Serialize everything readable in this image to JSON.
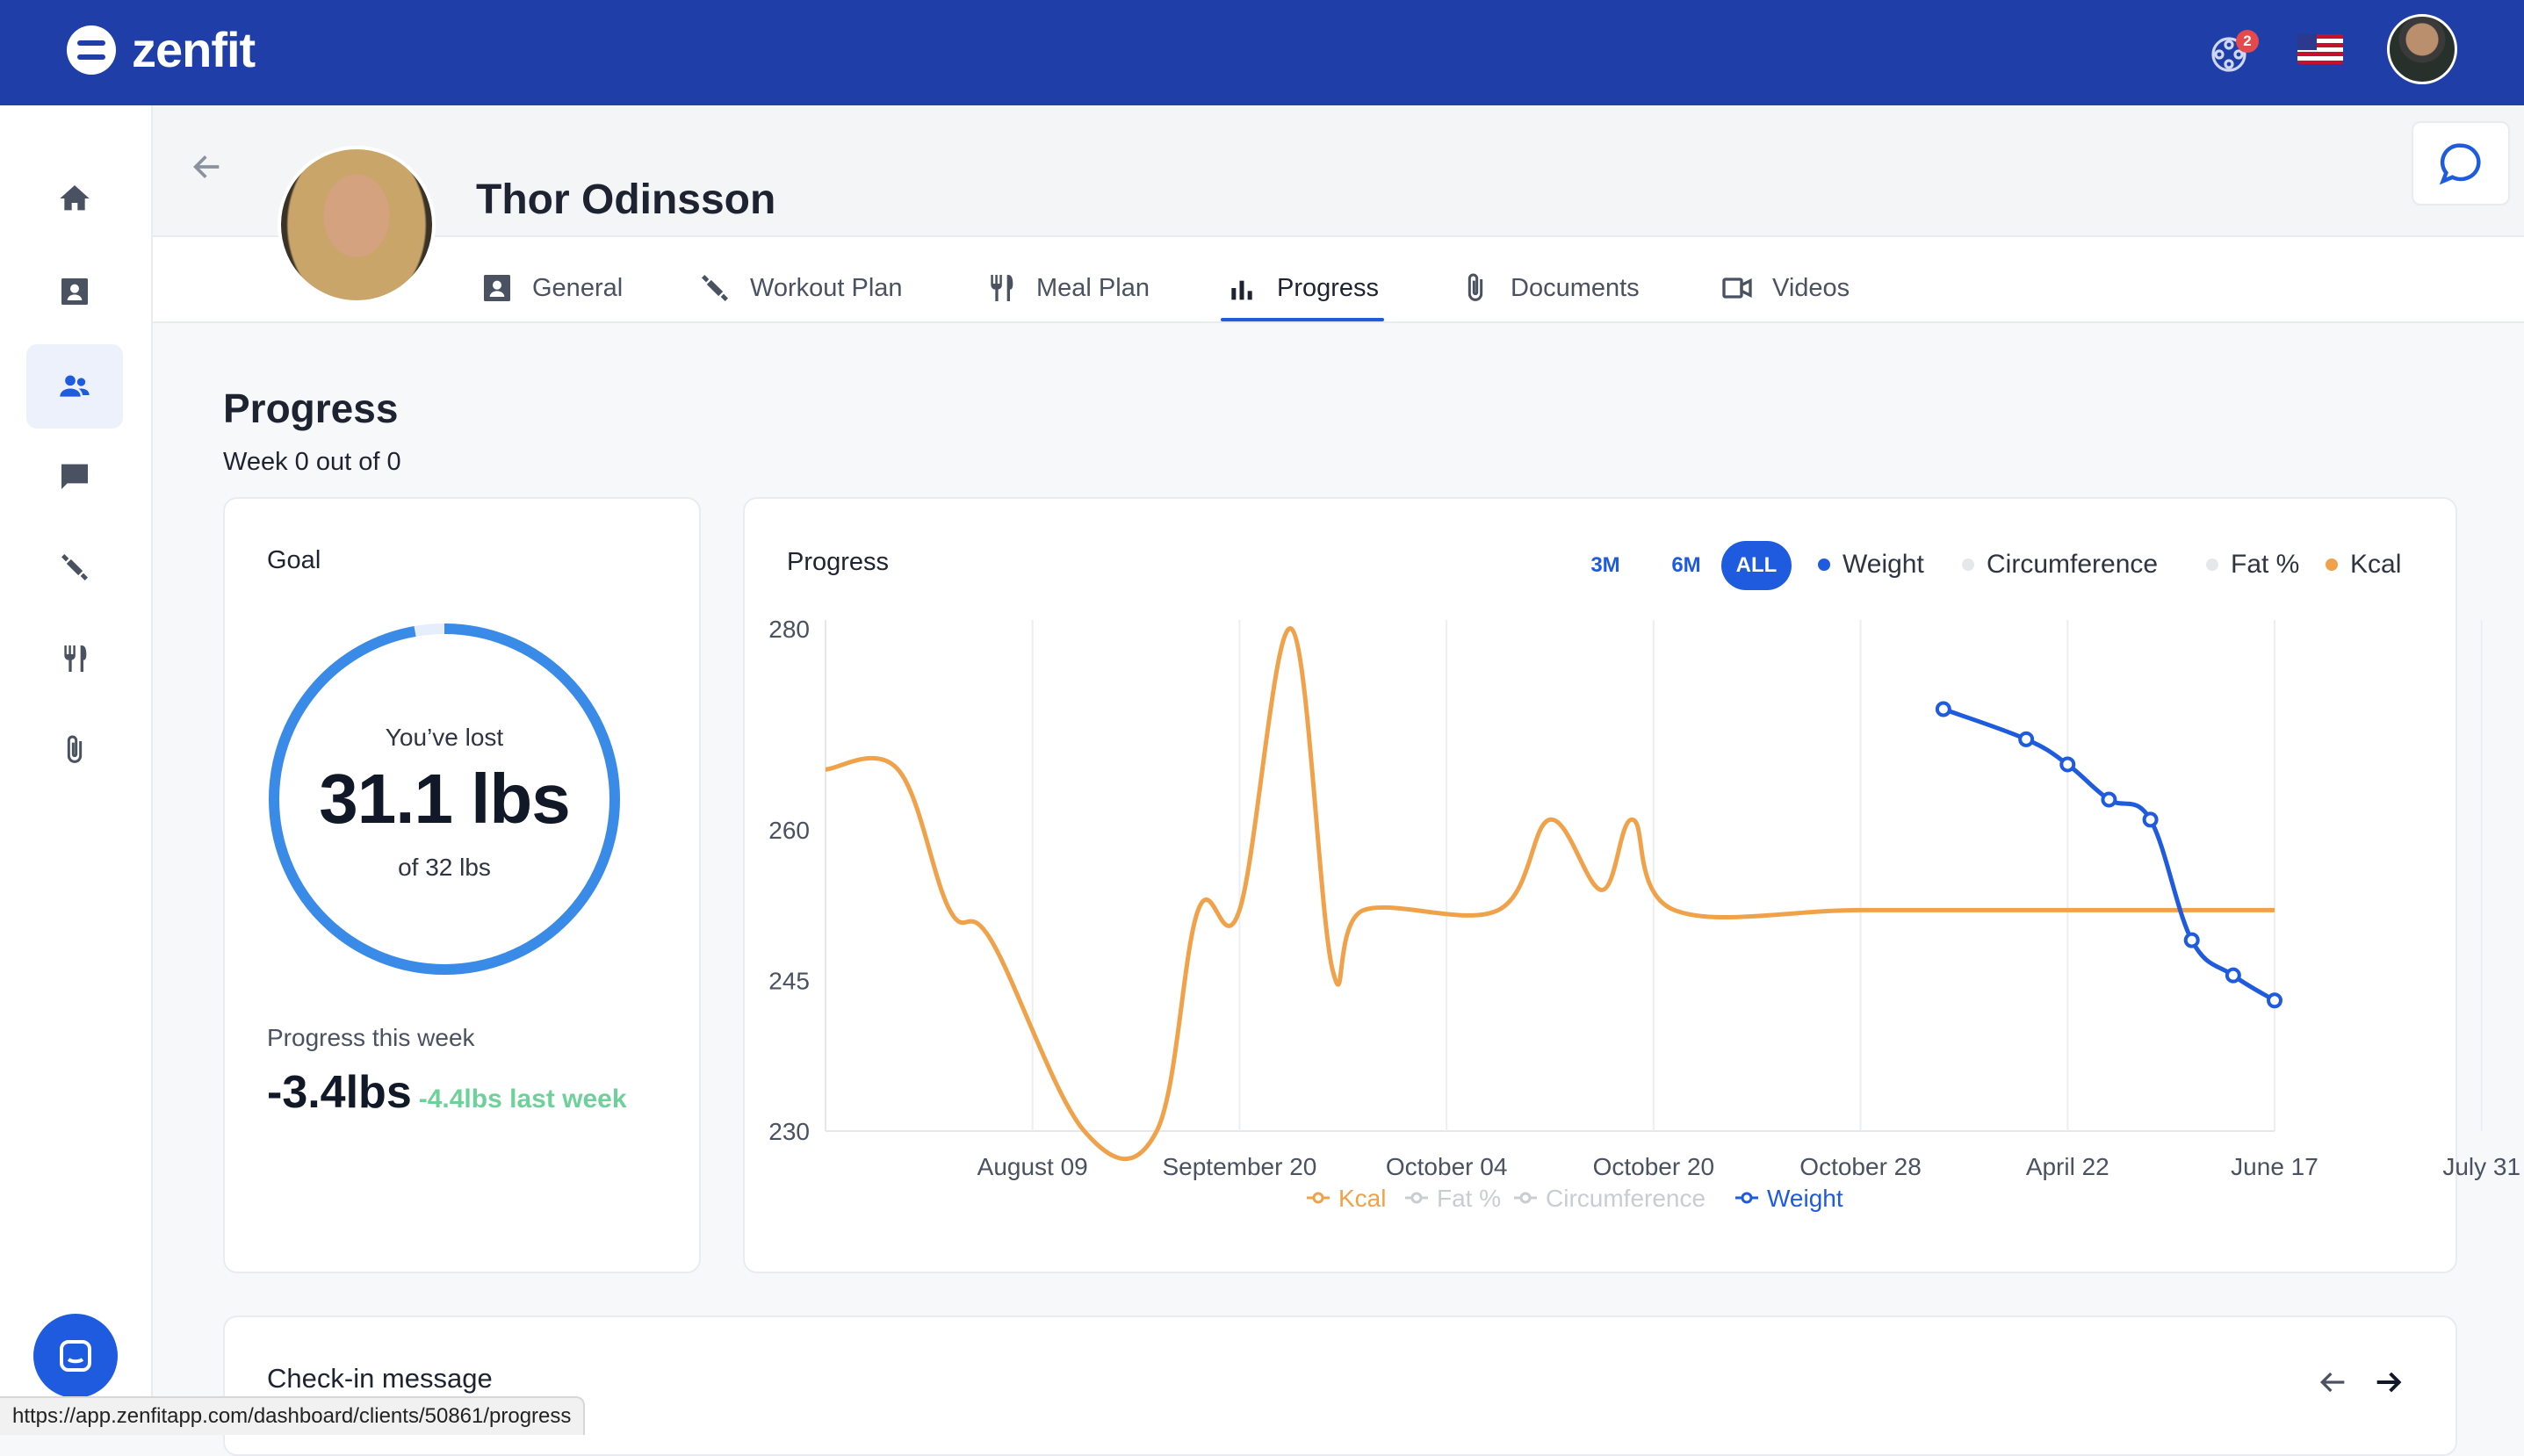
{
  "app": {
    "name": "zenfit"
  },
  "header": {
    "notifications_count": "2",
    "language_flag": "us-flag",
    "avatar_icon": "user-avatar"
  },
  "sidebar": {
    "items": [
      {
        "name": "home",
        "icon": "home-icon"
      },
      {
        "name": "contacts",
        "icon": "contact-card-icon"
      },
      {
        "name": "clients",
        "icon": "users-icon",
        "active": true
      },
      {
        "name": "messages",
        "icon": "message-icon"
      },
      {
        "name": "workouts",
        "icon": "dumbbell-icon"
      },
      {
        "name": "meals",
        "icon": "fork-knife-icon"
      },
      {
        "name": "documents",
        "icon": "paperclip-icon"
      }
    ]
  },
  "client": {
    "name": "Thor Odinsson",
    "tabs": [
      {
        "label": "General",
        "icon": "contact-card-icon"
      },
      {
        "label": "Workout Plan",
        "icon": "dumbbell-icon"
      },
      {
        "label": "Meal Plan",
        "icon": "fork-knife-icon"
      },
      {
        "label": "Progress",
        "icon": "bar-chart-icon",
        "active": true
      },
      {
        "label": "Documents",
        "icon": "paperclip-icon"
      },
      {
        "label": "Videos",
        "icon": "video-camera-icon"
      }
    ]
  },
  "progress": {
    "title": "Progress",
    "subtitle": "Week 0 out of 0"
  },
  "goal": {
    "title": "Goal",
    "lost_label": "You’ve lost",
    "lost_value": "31.1 lbs",
    "of_label": "of 32 lbs",
    "progress_fraction": 0.972,
    "week_label": "Progress this week",
    "week_value": "-3.4lbs",
    "last_week_value": "-4.4lbs last week",
    "colors": {
      "ring": "#3a8ae8",
      "ring_track": "#e6eefc",
      "last_week": "#6fd19a"
    }
  },
  "chart_card": {
    "title": "Progress",
    "ranges": [
      "3M",
      "6M",
      "ALL"
    ],
    "active_range": "ALL",
    "legend_top": [
      {
        "label": "Weight",
        "color": "#1f5bde"
      },
      {
        "label": "Circumference",
        "color": "#e5e7eb"
      },
      {
        "label": "Fat %",
        "color": "#e5e7eb"
      },
      {
        "label": "Kcal",
        "color": "#f0a24a"
      }
    ],
    "legend_bottom": [
      {
        "label": "Kcal",
        "color": "#f0a24a"
      },
      {
        "label": "Fat %",
        "color": "#c9ccd2"
      },
      {
        "label": "Circumference",
        "color": "#c9ccd2"
      },
      {
        "label": "Weight",
        "color": "#1f5bde"
      }
    ]
  },
  "chart_data": {
    "type": "line",
    "x_ticks": [
      "August 09",
      "September 20",
      "October 04",
      "October 20",
      "October 28",
      "April 22",
      "June 17",
      "July 31"
    ],
    "y_ticks": [
      230,
      245,
      260,
      280
    ],
    "ylim": [
      230,
      280
    ],
    "grid": true,
    "series": [
      {
        "name": "Kcal",
        "color": "#f0a24a",
        "points": [
          [
            0.0,
            266
          ],
          [
            0.7,
            266
          ],
          [
            1.2,
            252
          ],
          [
            1.6,
            249
          ],
          [
            2.5,
            230
          ],
          [
            3.2,
            230
          ],
          [
            3.6,
            252
          ],
          [
            4.0,
            252
          ],
          [
            4.5,
            280
          ],
          [
            4.9,
            246
          ],
          [
            5.2,
            252
          ],
          [
            6.5,
            252
          ],
          [
            7.0,
            261
          ],
          [
            7.5,
            254
          ],
          [
            7.8,
            261
          ],
          [
            8.2,
            252
          ],
          [
            10.0,
            252
          ],
          [
            12.0,
            252
          ],
          [
            14.0,
            252
          ]
        ]
      },
      {
        "name": "Weight",
        "color": "#1f5bde",
        "points": [
          [
            10.8,
            272
          ],
          [
            11.6,
            269
          ],
          [
            12.0,
            266.5
          ],
          [
            12.4,
            263
          ],
          [
            12.8,
            261
          ],
          [
            13.2,
            249
          ],
          [
            13.6,
            245.5
          ],
          [
            14.0,
            243
          ]
        ]
      }
    ]
  },
  "checkin": {
    "title": "Check-in message"
  },
  "status_bar": {
    "url": "https://app.zenfitapp.com/dashboard/clients/50861/progress"
  }
}
